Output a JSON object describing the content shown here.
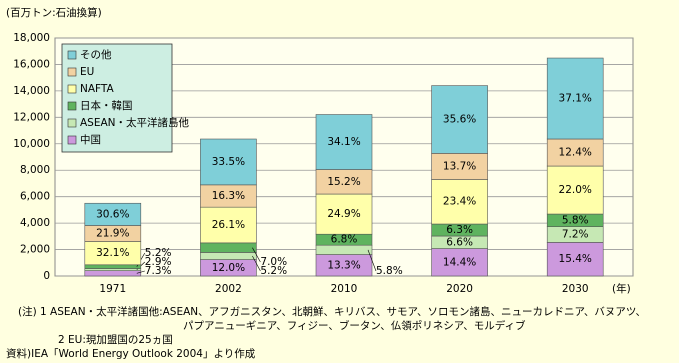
{
  "chart_data": {
    "type": "stacked_bar",
    "y_unit_label": "(百万トン:石油換算)",
    "x_unit_label": "(年)",
    "categories": [
      "1971",
      "2002",
      "2010",
      "2020",
      "2030"
    ],
    "series": [
      {
        "name": "中国",
        "color": "#cc99dd",
        "values": [
          402,
          1242,
          1623,
          2074,
          2541
        ],
        "share_labels": [
          "7.3%",
          "12.0%",
          "13.3%",
          "14.4%",
          "15.4%"
        ]
      },
      {
        "name": "ASEAN・太平洋諸島他",
        "color": "#c6e8b4",
        "values": [
          160,
          538,
          708,
          950,
          1188
        ],
        "share_labels": [
          "2.9%",
          "5.2%",
          "5.8%",
          "6.6%",
          "7.2%"
        ]
      },
      {
        "name": "日本・韓国",
        "color": "#5fb35f",
        "values": [
          286,
          725,
          830,
          907,
          957
        ],
        "share_labels": [
          "5.2%",
          "7.0%",
          "6.8%",
          "6.3%",
          "5.8%"
        ]
      },
      {
        "name": "NAFTA",
        "color": "#ffffaa",
        "values": [
          1766,
          2701,
          3038,
          3370,
          3630
        ],
        "share_labels": [
          "32.1%",
          "26.1%",
          "24.9%",
          "23.4%",
          "22.0%"
        ]
      },
      {
        "name": "EU",
        "color": "#f2d2a2",
        "values": [
          1205,
          1687,
          1854,
          1973,
          2046
        ],
        "share_labels": [
          "21.9%",
          "16.3%",
          "15.2%",
          "13.7%",
          "12.4%"
        ]
      },
      {
        "name": "その他",
        "color": "#7fcfd8",
        "values": [
          1683,
          3467,
          4160,
          5126,
          6122
        ],
        "share_labels": [
          "30.6%",
          "33.5%",
          "34.1%",
          "35.6%",
          "37.1%"
        ]
      }
    ],
    "ylim": [
      0,
      18000
    ],
    "yticks": [
      0,
      {
        "value": 2000,
        "label": "2,000"
      },
      {
        "value": 4000,
        "label": "4,000"
      },
      {
        "value": 6000,
        "label": "6,000"
      },
      {
        "value": 8000,
        "label": "8,000"
      },
      {
        "value": 10000,
        "label": "10,000"
      },
      {
        "value": 12000,
        "label": "12,000"
      },
      {
        "value": 14000,
        "label": "14,000"
      },
      {
        "value": 16000,
        "label": "16,000"
      },
      {
        "value": 18000,
        "label": "18,000"
      }
    ],
    "grid": true,
    "legend": "top-left"
  },
  "notes": [
    "(注) 1   ASEAN・太平洋諸国他:ASEAN、アフガニスタン、北朝鮮、キリバス、サモア、ソロモン諸島、ニューカレドニア、バヌアツ、",
    "パプアニューギニア、フィジー、ブータン、仏領ポリネシア、モルディブ",
    "2   EU:現加盟国の25ヵ国",
    "資料)IEA「World Energy Outlook 2004」より作成"
  ]
}
